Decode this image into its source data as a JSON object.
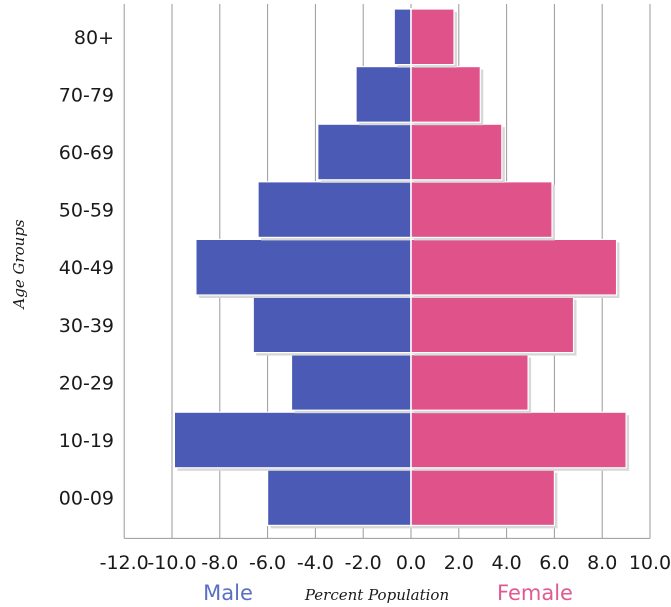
{
  "chart_data": {
    "type": "bar",
    "orientation": "horizontal",
    "subtype": "population-pyramid",
    "categories": [
      "00-09",
      "10-19",
      "20-29",
      "30-39",
      "40-49",
      "50-59",
      "60-69",
      "70-79",
      "80+"
    ],
    "series": [
      {
        "name": "Male",
        "values": [
          -6.0,
          -9.9,
          -5.0,
          -6.6,
          -9.0,
          -6.4,
          -3.9,
          -2.3,
          -0.7
        ]
      },
      {
        "name": "Female",
        "values": [
          6.0,
          9.0,
          4.9,
          6.8,
          8.6,
          5.9,
          3.8,
          2.9,
          1.8
        ]
      }
    ],
    "xlabel": "Percent Population",
    "ylabel": "Age Groups",
    "xticks": [
      "-12.0",
      "-10.0",
      "-8.0",
      "-6.0",
      "-4.0",
      "-2.0",
      "0.0",
      "2.0",
      "4.0",
      "6.0",
      "8.0",
      "10.0"
    ],
    "xlim": [
      -12,
      10
    ],
    "grid": "vertical",
    "legend": "bottom",
    "colors": {
      "Male": "#4b5bb5",
      "Female": "#e0528a",
      "male_label": "#5a6fc4",
      "female_label": "#e05a90"
    }
  }
}
